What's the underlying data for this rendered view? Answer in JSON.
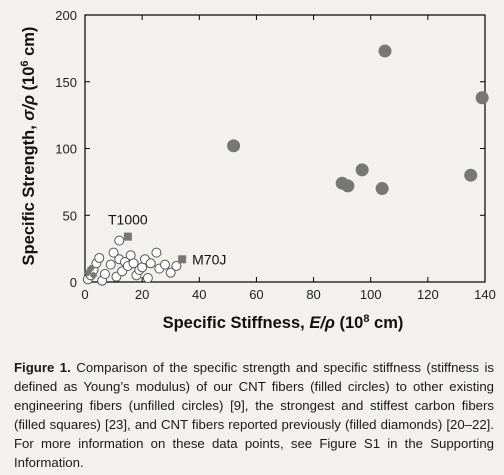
{
  "chart_data": {
    "type": "scatter",
    "xlabel_text": "Specific Stiffness, ",
    "xlabel_symbol": "E/ρ",
    "xlabel_unit": " (10",
    "xlabel_exp": "8",
    "xlabel_unit_end": " cm)",
    "ylabel_text": "Specific Strength, ",
    "ylabel_symbol": "σ/ρ",
    "ylabel_unit": " (10",
    "ylabel_exp": "6",
    "ylabel_unit_end": " cm)",
    "xlim": [
      0,
      140
    ],
    "ylim": [
      0,
      200
    ],
    "xticks": [
      0,
      20,
      40,
      60,
      80,
      100,
      120,
      140
    ],
    "yticks": [
      0,
      50,
      100,
      150,
      200
    ],
    "grid": false,
    "series": [
      {
        "marker": "filled-circle",
        "points": [
          [
            52,
            102
          ],
          [
            90,
            74
          ],
          [
            92,
            72
          ],
          [
            97,
            84
          ],
          [
            104,
            70
          ],
          [
            105,
            173
          ],
          [
            135,
            80
          ],
          [
            139,
            138
          ]
        ]
      },
      {
        "marker": "unfilled-circle",
        "points": [
          [
            1,
            2
          ],
          [
            2,
            5
          ],
          [
            3,
            9
          ],
          [
            4,
            14
          ],
          [
            5,
            18
          ],
          [
            6,
            1
          ],
          [
            7,
            6
          ],
          [
            9,
            13
          ],
          [
            10,
            22
          ],
          [
            11,
            4
          ],
          [
            12,
            31
          ],
          [
            12,
            17
          ],
          [
            13,
            8
          ],
          [
            14,
            15
          ],
          [
            15,
            12
          ],
          [
            16,
            20
          ],
          [
            17,
            14
          ],
          [
            18,
            5
          ],
          [
            19,
            9
          ],
          [
            20,
            11
          ],
          [
            21,
            17
          ],
          [
            22,
            3
          ],
          [
            23,
            14
          ],
          [
            25,
            22
          ],
          [
            26,
            10
          ],
          [
            28,
            13
          ],
          [
            30,
            7
          ],
          [
            32,
            12
          ]
        ]
      },
      {
        "marker": "filled-square",
        "points": [
          [
            15,
            34
          ],
          [
            34,
            17
          ]
        ]
      },
      {
        "marker": "filled-diamond",
        "points": [
          [
            1,
            7
          ],
          [
            2,
            10
          ],
          [
            3,
            5
          ]
        ]
      }
    ],
    "annotations": [
      {
        "text": "T1000",
        "x": 15,
        "y": 34
      },
      {
        "text": "M70J",
        "x": 34,
        "y": 17
      }
    ],
    "colors": {
      "filled": "#777777",
      "unfilled_stroke": "#555555",
      "unfilled_fill": "#ffffff",
      "axis": "#000000"
    }
  },
  "caption": {
    "label": "Figure 1.",
    "text": " Comparison of the specific strength and specific stiffness (stiffness is defined as Young’s modulus) of our CNT fibers (filled circles) to other existing engineering fibers (unfilled circles) [9], the strongest and stiffest carbon fibers (filled squares) [23], and CNT fibers reported previously (filled diamonds) [20–22]. For more information on these data points, see Figure S1 in the Supporting Information."
  }
}
